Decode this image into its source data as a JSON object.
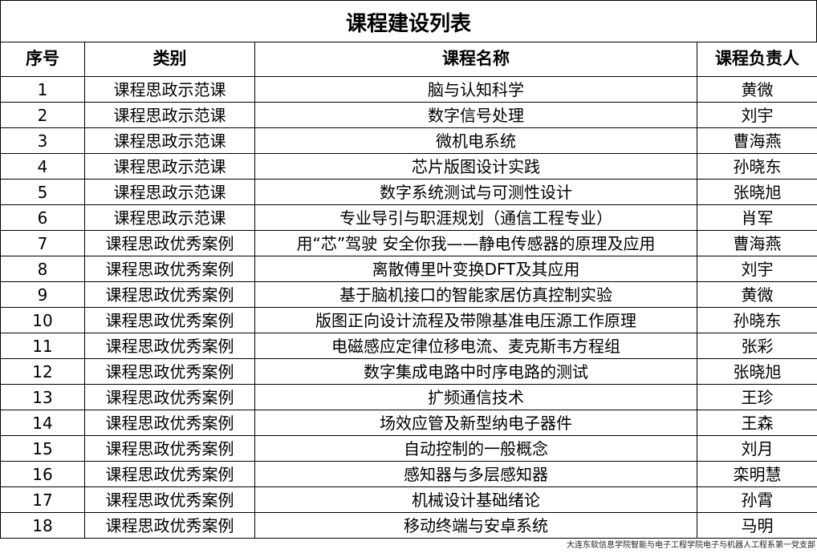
{
  "title": "课程建设列表",
  "columns": [
    "序号",
    "类别",
    "课程名称",
    "课程负责人"
  ],
  "rows": [
    [
      "1",
      "课程思政示范课",
      "脑与认知科学",
      "黄微"
    ],
    [
      "2",
      "课程思政示范课",
      "数字信号处理",
      "刘宇"
    ],
    [
      "3",
      "课程思政示范课",
      "微机电系统",
      "曹海燕"
    ],
    [
      "4",
      "课程思政示范课",
      "芯片版图设计实践",
      "孙晓东"
    ],
    [
      "5",
      "课程思政示范课",
      "数字系统测试与可测性设计",
      "张晓旭"
    ],
    [
      "6",
      "课程思政示范课",
      "专业导引与职涯规划（通信工程专业）",
      "肖军"
    ],
    [
      "7",
      "课程思政优秀案例",
      "用“芯”驾驶 安全你我——静电传感器的原理及应用",
      "曹海燕"
    ],
    [
      "8",
      "课程思政优秀案例",
      "离散傅里叶变换DFT及其应用",
      "刘宇"
    ],
    [
      "9",
      "课程思政优秀案例",
      "基于脑机接口的智能家居仿真控制实验",
      "黄微"
    ],
    [
      "10",
      "课程思政优秀案例",
      "版图正向设计流程及带隙基准电压源工作原理",
      "孙晓东"
    ],
    [
      "11",
      "课程思政优秀案例",
      "电磁感应定律位移电流、麦克斯韦方程组",
      "张彩"
    ],
    [
      "12",
      "课程思政优秀案例",
      "数字集成电路中时序电路的测试",
      "张晓旭"
    ],
    [
      "13",
      "课程思政优秀案例",
      "扩频通信技术",
      "王珍"
    ],
    [
      "14",
      "课程思政优秀案例",
      "场效应管及新型纳电子器件",
      "王森"
    ],
    [
      "15",
      "课程思政优秀案例",
      "自动控制的一般概念",
      "刘月"
    ],
    [
      "16",
      "课程思政优秀案例",
      "感知器与多层感知器",
      "栾明慧"
    ],
    [
      "17",
      "课程思政优秀案例",
      "机械设计基础绪论",
      "孙霄"
    ],
    [
      "18",
      "课程思政优秀案例",
      "移动终端与安卓系统",
      "马明"
    ]
  ],
  "watermark": "大连东软信息学院智能与电子工程学院电子与机器人工程系第一党支部"
}
